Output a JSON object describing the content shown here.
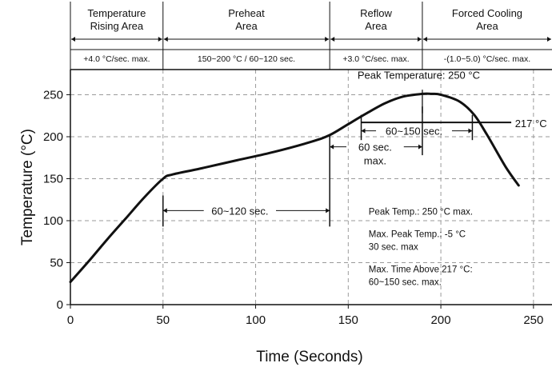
{
  "chart_data": {
    "type": "line",
    "title": "",
    "xlabel": "Time (Seconds)",
    "ylabel": "Temperature (°C)",
    "xlim": [
      0,
      260
    ],
    "ylim": [
      0,
      280
    ],
    "x_ticks": [
      "0",
      "50",
      "100",
      "150",
      "200",
      "250"
    ],
    "y_ticks": [
      "0",
      "50",
      "100",
      "150",
      "200",
      "250"
    ],
    "grid": true,
    "series": [
      {
        "x": [
          0,
          10,
          20,
          30,
          40,
          50,
          55,
          70,
          90,
          110,
          130,
          140,
          150,
          160,
          170,
          180,
          190,
          195,
          200,
          210,
          218,
          225,
          235,
          242
        ],
        "y": [
          27,
          52,
          78,
          103,
          128,
          150,
          155,
          162,
          172,
          182,
          194,
          202,
          215,
          228,
          240,
          248,
          251,
          251,
          250,
          242,
          226,
          202,
          164,
          142
        ]
      }
    ],
    "annotations": {
      "peak_label": "Peak Temperature: 250 °C",
      "line_217_label": "217 °C",
      "preheat_time": "60~120 sec.",
      "reflow_rise_time_a": "60 sec.",
      "reflow_rise_time_b": "max.",
      "above_217_time": "60~150 sec.",
      "note_1": "Peak Temp.: 250 °C max.",
      "note_2a": "Max. Peak Temp.: -5 °C",
      "note_2b": "30 sec. max",
      "note_3a": "Max. Time Above 217 °C:",
      "note_3b": "60~150 sec. max."
    },
    "zones": [
      {
        "name_line1": "Temperature",
        "name_line2": "Rising Area",
        "rate": "+4.0 °C/sec. max."
      },
      {
        "name_line1": "Preheat",
        "name_line2": "Area",
        "rate": "150~200 °C / 60~120 sec."
      },
      {
        "name_line1": "Reflow",
        "name_line2": "Area",
        "rate": "+3.0 °C/sec. max."
      },
      {
        "name_line1": "Forced Cooling",
        "name_line2": "Area",
        "rate": "-(1.0~5.0) °C/sec. max."
      }
    ],
    "zone_bounds": [
      0,
      50,
      140,
      190,
      260
    ]
  }
}
